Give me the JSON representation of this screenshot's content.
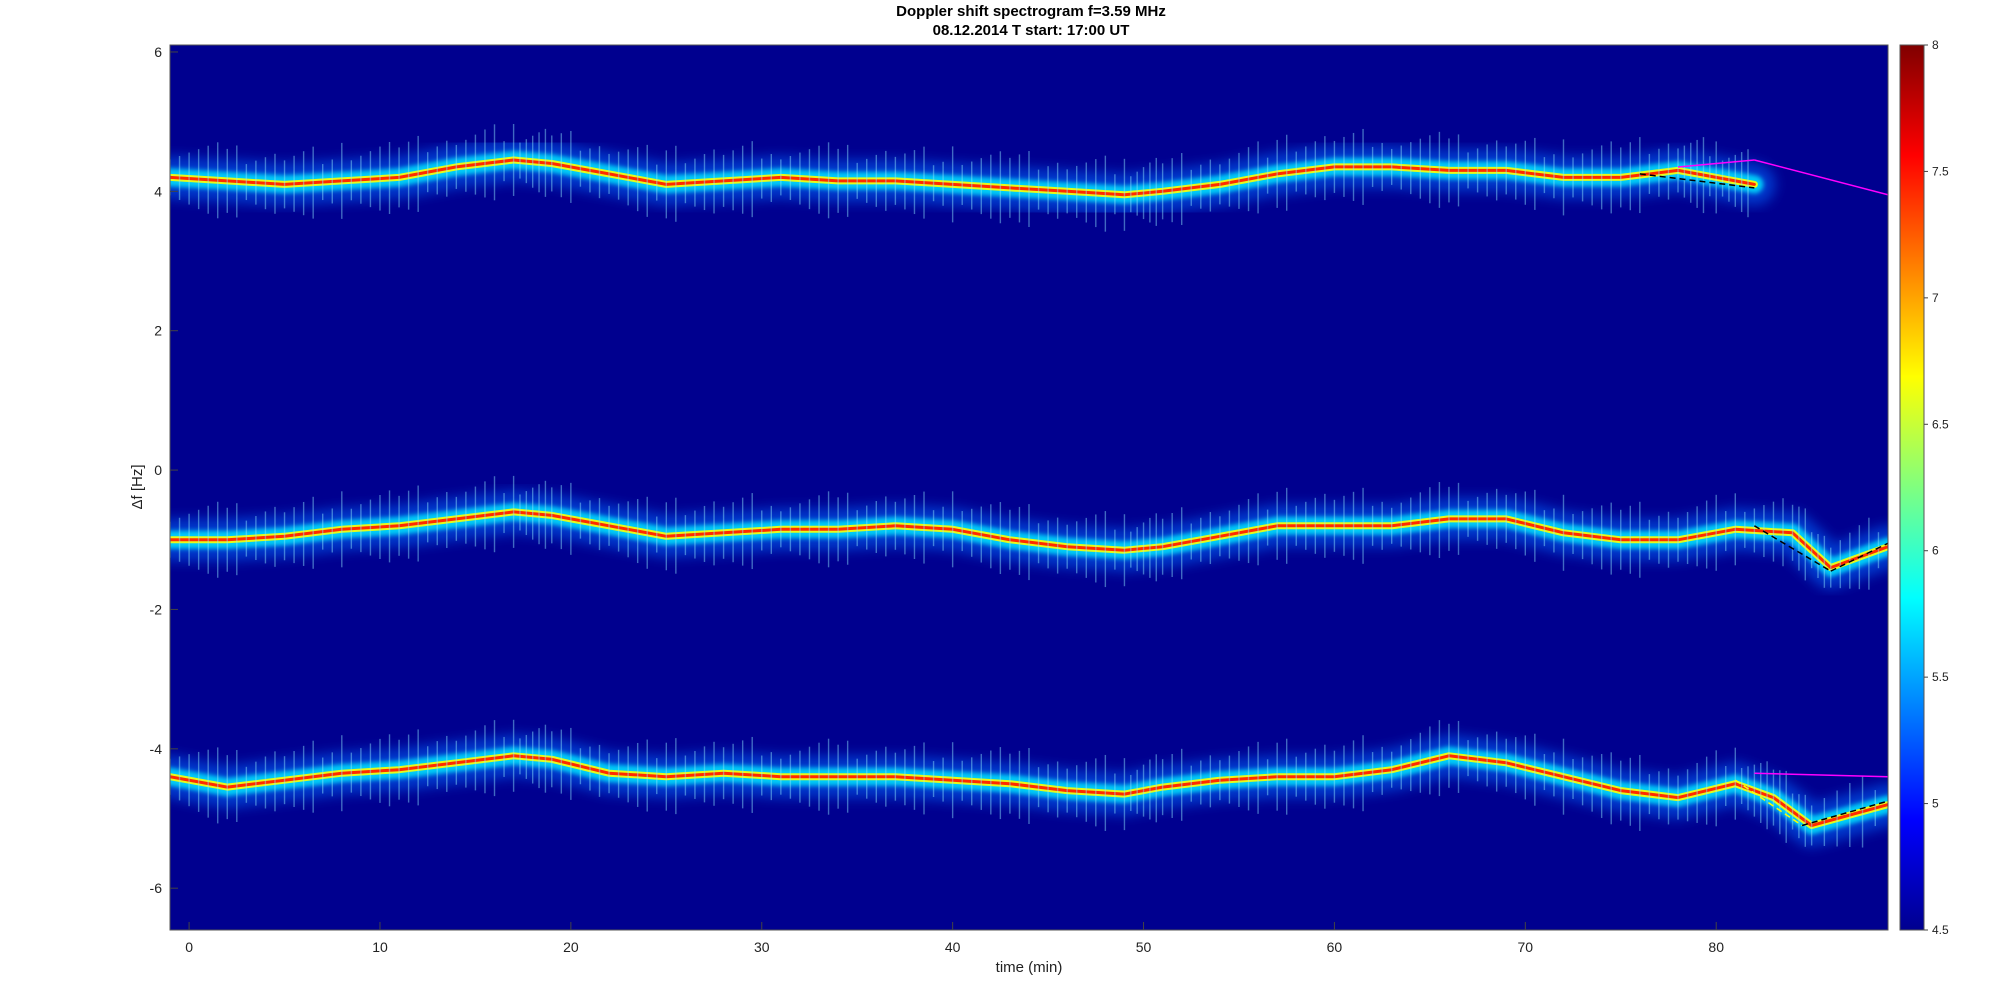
{
  "chart_data": {
    "type": "heatmap",
    "title": "Doppler shift spectrogram f=3.59 MHz",
    "subtitle": "08.12.2014   T start: 17:00 UT",
    "xlabel": "time (min)",
    "ylabel": "Δf [Hz]",
    "xlim": [
      -1,
      89
    ],
    "ylim": [
      -6.6,
      6.1
    ],
    "x_ticks": [
      "0",
      "10",
      "20",
      "30",
      "40",
      "50",
      "60",
      "70",
      "80"
    ],
    "y_ticks": [
      "6",
      "4",
      "2",
      "0",
      "-2",
      "-4",
      "-6"
    ],
    "colorbar": {
      "range": [
        4.5,
        8
      ],
      "ticks": [
        "8",
        "7.5",
        "7",
        "6.5",
        "6",
        "5.5",
        "5",
        "4.5"
      ],
      "colormap": "jet"
    },
    "traces": [
      {
        "x": [
          -1,
          2,
          5,
          8,
          11,
          14,
          17,
          19,
          22,
          25,
          28,
          31,
          34,
          37,
          40,
          43,
          46,
          49,
          51,
          54,
          57,
          60,
          63,
          66,
          69,
          72,
          75,
          78,
          80,
          82
        ],
        "y": [
          4.2,
          4.15,
          4.1,
          4.15,
          4.2,
          4.35,
          4.45,
          4.4,
          4.25,
          4.1,
          4.15,
          4.2,
          4.15,
          4.15,
          4.1,
          4.05,
          4.0,
          3.95,
          4.0,
          4.1,
          4.25,
          4.35,
          4.35,
          4.3,
          4.3,
          4.2,
          4.2,
          4.3,
          4.2,
          4.1
        ]
      },
      {
        "x": [
          -1,
          2,
          5,
          8,
          11,
          14,
          17,
          19,
          22,
          25,
          28,
          31,
          34,
          37,
          40,
          43,
          46,
          49,
          51,
          54,
          57,
          60,
          63,
          66,
          69,
          72,
          75,
          78,
          81,
          84,
          86,
          89
        ],
        "y": [
          -1.0,
          -1.0,
          -0.95,
          -0.85,
          -0.8,
          -0.7,
          -0.6,
          -0.65,
          -0.8,
          -0.95,
          -0.9,
          -0.85,
          -0.85,
          -0.8,
          -0.85,
          -1.0,
          -1.1,
          -1.15,
          -1.1,
          -0.95,
          -0.8,
          -0.8,
          -0.8,
          -0.7,
          -0.7,
          -0.9,
          -1.0,
          -1.0,
          -0.85,
          -0.9,
          -1.4,
          -1.1
        ]
      },
      {
        "x": [
          -1,
          2,
          5,
          8,
          11,
          14,
          17,
          19,
          22,
          25,
          28,
          31,
          34,
          37,
          40,
          43,
          46,
          49,
          51,
          54,
          57,
          60,
          63,
          66,
          69,
          72,
          75,
          78,
          81,
          83,
          85,
          89
        ],
        "y": [
          -4.4,
          -4.55,
          -4.45,
          -4.35,
          -4.3,
          -4.2,
          -4.1,
          -4.15,
          -4.35,
          -4.4,
          -4.35,
          -4.4,
          -4.4,
          -4.4,
          -4.45,
          -4.5,
          -4.6,
          -4.65,
          -4.55,
          -4.45,
          -4.4,
          -4.4,
          -4.3,
          -4.1,
          -4.2,
          -4.4,
          -4.6,
          -4.7,
          -4.5,
          -4.7,
          -5.1,
          -4.8
        ]
      }
    ],
    "colors": {
      "background": "#00008F",
      "trace_core": "#FF2A00",
      "trace_halo": "#00E5FF",
      "overlay_line": "#FF00FF"
    }
  }
}
